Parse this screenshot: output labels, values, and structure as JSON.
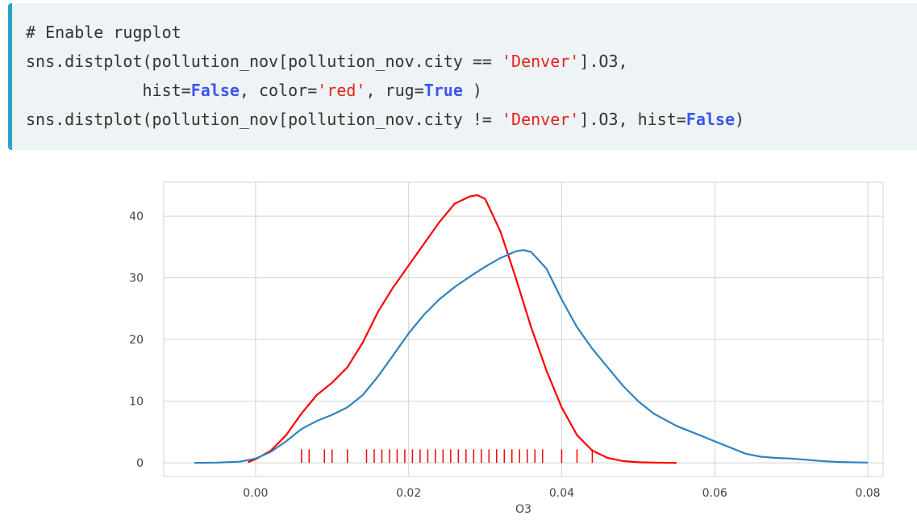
{
  "code": {
    "lines": [
      [
        {
          "t": "# Enable rugplot",
          "c": "comment"
        }
      ],
      [
        {
          "t": "sns.distplot(pollution_nov[pollution_nov.city == ",
          "c": "plain"
        },
        {
          "t": "'Denver'",
          "c": "str"
        },
        {
          "t": "].O3,",
          "c": "plain"
        }
      ],
      [
        {
          "t": "            hist=",
          "c": "plain"
        },
        {
          "t": "False",
          "c": "kw"
        },
        {
          "t": ", color=",
          "c": "plain"
        },
        {
          "t": "'red'",
          "c": "str"
        },
        {
          "t": ", rug=",
          "c": "plain"
        },
        {
          "t": "True",
          "c": "kw"
        },
        {
          "t": " )",
          "c": "plain"
        }
      ],
      [
        {
          "t": "sns.distplot(pollution_nov[pollution_nov.city != ",
          "c": "plain"
        },
        {
          "t": "'Denver'",
          "c": "str"
        },
        {
          "t": "].O3, hist=",
          "c": "plain"
        },
        {
          "t": "False",
          "c": "kw"
        },
        {
          "t": ")",
          "c": "plain"
        }
      ]
    ]
  },
  "chart_data": {
    "type": "line",
    "xlabel": "O3",
    "ylabel": "",
    "xlim": [
      -0.012,
      0.082
    ],
    "ylim": [
      -2.2,
      45.5
    ],
    "grid": true,
    "xticks": [
      {
        "v": 0.0,
        "label": "0.00"
      },
      {
        "v": 0.02,
        "label": "0.02"
      },
      {
        "v": 0.04,
        "label": "0.04"
      },
      {
        "v": 0.06,
        "label": "0.06"
      },
      {
        "v": 0.08,
        "label": "0.08"
      }
    ],
    "yticks": [
      {
        "v": 0,
        "label": "0"
      },
      {
        "v": 10,
        "label": "10"
      },
      {
        "v": 20,
        "label": "20"
      },
      {
        "v": 30,
        "label": "30"
      },
      {
        "v": 40,
        "label": "40"
      }
    ],
    "colors": {
      "denver": "#ff0000",
      "other": "#3182bd",
      "grid": "#d3d3d3"
    },
    "series": [
      {
        "color": "#ff0000",
        "x": [
          -0.001,
          0.0,
          0.002,
          0.004,
          0.006,
          0.008,
          0.01,
          0.012,
          0.014,
          0.016,
          0.018,
          0.02,
          0.022,
          0.024,
          0.026,
          0.028,
          0.029,
          0.03,
          0.032,
          0.034,
          0.036,
          0.038,
          0.04,
          0.042,
          0.044,
          0.046,
          0.048,
          0.05,
          0.052,
          0.055
        ],
        "y": [
          0.1,
          0.6,
          2.0,
          4.5,
          8.0,
          11.0,
          13.0,
          15.5,
          19.5,
          24.5,
          28.5,
          32.0,
          35.5,
          39.0,
          42.0,
          43.2,
          43.4,
          42.8,
          37.5,
          30.0,
          22.0,
          15.0,
          9.0,
          4.5,
          2.0,
          0.8,
          0.3,
          0.1,
          0.05,
          0.0
        ]
      },
      {
        "color": "#3182bd",
        "x": [
          -0.008,
          -0.005,
          -0.002,
          0.0,
          0.002,
          0.004,
          0.006,
          0.008,
          0.01,
          0.012,
          0.014,
          0.016,
          0.018,
          0.02,
          0.022,
          0.024,
          0.026,
          0.028,
          0.03,
          0.032,
          0.034,
          0.035,
          0.036,
          0.038,
          0.04,
          0.042,
          0.044,
          0.046,
          0.048,
          0.05,
          0.052,
          0.055,
          0.058,
          0.06,
          0.062,
          0.064,
          0.066,
          0.068,
          0.07,
          0.072,
          0.074,
          0.076,
          0.08
        ],
        "y": [
          0.0,
          0.05,
          0.2,
          0.7,
          1.8,
          3.5,
          5.5,
          6.8,
          7.8,
          9.0,
          11.0,
          14.0,
          17.5,
          21.0,
          24.0,
          26.5,
          28.5,
          30.2,
          31.8,
          33.2,
          34.3,
          34.5,
          34.2,
          31.5,
          26.5,
          22.0,
          18.5,
          15.5,
          12.5,
          10.0,
          8.0,
          6.0,
          4.5,
          3.5,
          2.5,
          1.5,
          1.0,
          0.8,
          0.7,
          0.5,
          0.3,
          0.15,
          0.05
        ]
      }
    ],
    "rug": {
      "color": "#ff0000",
      "x": [
        0.006,
        0.007,
        0.009,
        0.01,
        0.012,
        0.0145,
        0.0155,
        0.0165,
        0.0175,
        0.0185,
        0.0195,
        0.0205,
        0.0215,
        0.0225,
        0.0235,
        0.0245,
        0.0255,
        0.0265,
        0.0275,
        0.0285,
        0.0295,
        0.0305,
        0.0315,
        0.0325,
        0.0335,
        0.0345,
        0.0355,
        0.0365,
        0.0375,
        0.04,
        0.042,
        0.044
      ]
    }
  }
}
